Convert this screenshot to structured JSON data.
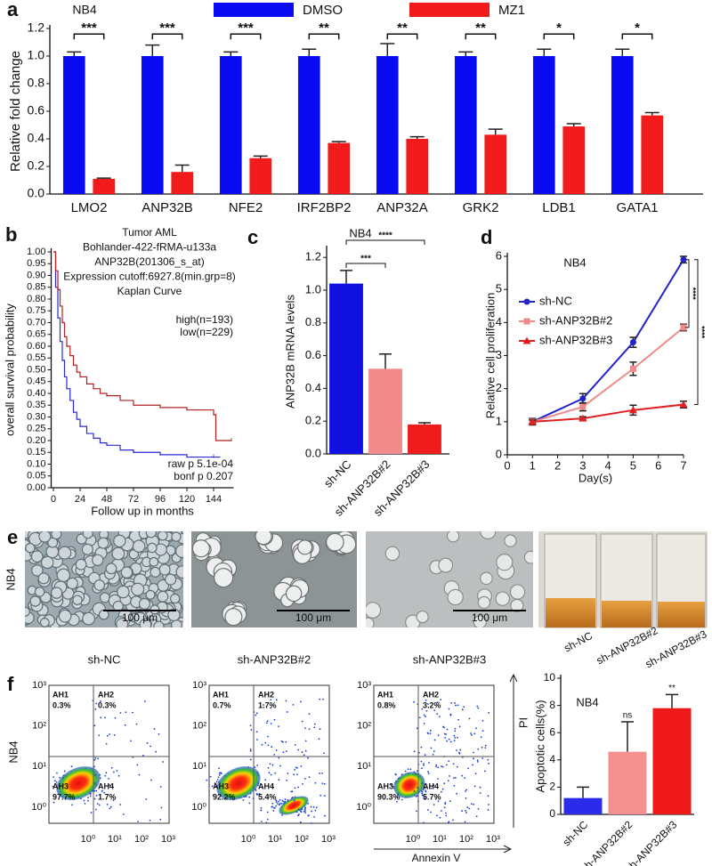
{
  "chart_data": [
    {
      "type": "bar",
      "panel": "a",
      "title": "NB4",
      "ylabel": "Relative fold change",
      "categories": [
        "LMO2",
        "ANP32B",
        "NFE2",
        "IRF2BP2",
        "ANP32A",
        "GRK2",
        "LDB1",
        "GATA1"
      ],
      "series": [
        {
          "name": "DMSO",
          "color": "#0b0bf2",
          "values": [
            1,
            1,
            1,
            1,
            1,
            1,
            1,
            1
          ],
          "errors": [
            0.03,
            0.08,
            0.03,
            0.05,
            0.09,
            0.03,
            0.05,
            0.05
          ]
        },
        {
          "name": "MZ1",
          "color": "#f21a1a",
          "values": [
            0.11,
            0.16,
            0.26,
            0.37,
            0.4,
            0.43,
            0.49,
            0.57
          ],
          "errors": [
            0.005,
            0.05,
            0.015,
            0.01,
            0.015,
            0.04,
            0.02,
            0.02
          ]
        }
      ],
      "significance": [
        "***",
        "***",
        "***",
        "**",
        "**",
        "**",
        "*",
        "*"
      ],
      "ylim": [
        0,
        1.2
      ],
      "yticks": [
        {
          "value": 0,
          "label": "0.0"
        },
        0.2,
        0.4,
        0.6,
        0.8,
        {
          "value": 1,
          "label": "1.0"
        },
        1.2
      ],
      "legend": "top"
    },
    {
      "type": "line",
      "panel": "b",
      "step": true,
      "ylabel": "overall survival probability",
      "xlabel": "Follow up in months",
      "annotations": [
        "Tumor AML",
        "Bohlander-422-fRMA-u133a",
        "ANP32B(201306_s_at)",
        "Expression cutoff:6927.8(min.grp=8)",
        "Kaplan Curve"
      ],
      "stats": [
        "raw p 5.1e-04",
        "bonf p 0.207"
      ],
      "series": [
        {
          "name": "high(n=193)",
          "color": "#2a2ad0",
          "x": [
            0,
            2,
            4,
            6,
            8,
            10,
            12,
            15,
            18,
            21,
            24,
            30,
            36,
            42,
            48,
            60,
            72,
            84,
            96,
            108,
            120,
            132,
            144,
            150
          ],
          "values": [
            1,
            0.85,
            0.72,
            0.62,
            0.54,
            0.47,
            0.42,
            0.37,
            0.32,
            0.29,
            0.26,
            0.23,
            0.21,
            0.19,
            0.18,
            0.16,
            0.15,
            0.15,
            0.14,
            0.14,
            0.13,
            0.13,
            0.13,
            0.13
          ]
        },
        {
          "name": "low(n=229)",
          "color": "#b22222",
          "x": [
            0,
            2,
            4,
            6,
            8,
            10,
            12,
            15,
            18,
            21,
            24,
            30,
            36,
            42,
            48,
            60,
            72,
            84,
            96,
            108,
            120,
            132,
            144,
            146,
            160
          ],
          "values": [
            1,
            0.92,
            0.84,
            0.77,
            0.7,
            0.64,
            0.6,
            0.56,
            0.52,
            0.49,
            0.47,
            0.44,
            0.42,
            0.4,
            0.39,
            0.37,
            0.35,
            0.35,
            0.34,
            0.34,
            0.33,
            0.33,
            0.31,
            0.2,
            0.2
          ]
        }
      ],
      "xlim": [
        -2,
        162
      ],
      "xticks": [
        0,
        24,
        48,
        72,
        96,
        120,
        144
      ],
      "ylim": [
        0,
        1
      ],
      "yticks": [
        {
          "value": 0,
          "label": "0.00"
        },
        0.05,
        {
          "value": 0.1,
          "label": "0.10"
        },
        0.15,
        {
          "value": 0.2,
          "label": "0.20"
        },
        0.25,
        {
          "value": 0.3,
          "label": "0.30"
        },
        0.35,
        {
          "value": 0.4,
          "label": "0.40"
        },
        0.45,
        {
          "value": 0.5,
          "label": "0.50"
        },
        0.55,
        {
          "value": 0.6,
          "label": "0.60"
        },
        0.65,
        {
          "value": 0.7,
          "label": "0.70"
        },
        0.75,
        {
          "value": 0.8,
          "label": "0.80"
        },
        0.85,
        {
          "value": 0.9,
          "label": "0.90"
        },
        0.95,
        {
          "value": 1,
          "label": "1.00"
        }
      ],
      "legend": "right"
    },
    {
      "type": "bar",
      "panel": "c",
      "title": "NB4",
      "ylabel": "ANP32B mRNA levels",
      "categories": [
        "sh-NC",
        "sh-ANP32B#2",
        "sh-ANP32B#3"
      ],
      "values": [
        1.04,
        0.52,
        0.18
      ],
      "errors": [
        0.08,
        0.09,
        0.01
      ],
      "colors": [
        "#1010e0",
        "#f28b8b",
        "#ee1c1c"
      ],
      "significance": [
        "***",
        "****"
      ],
      "ylim": [
        0,
        1.25
      ],
      "yticks": [
        {
          "value": 0,
          "label": "0.0"
        },
        0.2,
        0.4,
        0.6,
        0.8,
        {
          "value": 1,
          "label": "1.0"
        },
        1.2
      ]
    },
    {
      "type": "line",
      "panel": "d",
      "title": "NB4",
      "ylabel": "Relative cell proliferation",
      "xlabel": "Day(s)",
      "x": [
        1,
        3,
        5,
        7
      ],
      "series": [
        {
          "name": "sh-NC",
          "color": "#2323c8",
          "marker": "circle",
          "values": [
            1,
            1.7,
            3.4,
            5.9
          ],
          "errors": [
            0.1,
            0.15,
            0.15,
            0.1
          ]
        },
        {
          "name": "sh-ANP32B#2",
          "color": "#f08a8a",
          "marker": "square",
          "values": [
            1,
            1.45,
            2.6,
            3.85
          ],
          "errors": [
            0.08,
            0.12,
            0.2,
            0.1
          ]
        },
        {
          "name": "sh-ANP32B#3",
          "color": "#e02020",
          "marker": "triangle",
          "values": [
            1,
            1.1,
            1.35,
            1.52
          ],
          "errors": [
            0.05,
            0.05,
            0.15,
            0.1
          ]
        }
      ],
      "significance": [
        "****",
        "****"
      ],
      "xlim": [
        0,
        7
      ],
      "xticks": [
        0,
        1,
        2,
        3,
        4,
        5,
        6,
        7
      ],
      "ylim": [
        0,
        6
      ],
      "yticks": [
        0,
        1,
        2,
        3,
        4,
        5,
        6
      ],
      "legend": "left"
    },
    {
      "type": "bar",
      "panel": null,
      "title": "NB4",
      "ylabel": "Apoptotic cells(%)",
      "categories": [
        "sh-NC",
        "sh-ANP32B#2",
        "sh-ANP32B#3"
      ],
      "values": [
        1.2,
        4.6,
        7.8
      ],
      "errors": [
        0.8,
        2.2,
        1
      ],
      "colors": [
        "#2b2bea",
        "#f59090",
        "#f01818"
      ],
      "significance": [
        null,
        "ns",
        "**"
      ],
      "ylim": [
        0,
        10
      ],
      "yticks": [
        0,
        2,
        4,
        6,
        8,
        10
      ]
    }
  ],
  "images": {
    "panel": "e",
    "row_label": "NB4",
    "micrographs": [
      {
        "label": "sh-NC",
        "scale": "100 μm"
      },
      {
        "label": "sh-ANP32B#2",
        "scale": "100 μm"
      },
      {
        "label": "sh-ANP32B#3",
        "scale": "100 μm"
      }
    ],
    "vials": [
      "sh-NC",
      "sh-ANP32B#2",
      "sh-ANP32B#3"
    ]
  },
  "flow": {
    "panel": "f",
    "row_label": "NB4",
    "y_axis": "PI",
    "x_axis": "Annexin V",
    "ticks": [
      "10⁰",
      "10¹",
      "10²",
      "10³"
    ],
    "plots": [
      {
        "quadrants": [
          {
            "name": "AH1",
            "label": "0.3%"
          },
          {
            "name": "AH2",
            "label": "0.3%"
          },
          {
            "name": "AH3",
            "label": "97.7%"
          },
          {
            "name": "AH4",
            "label": "1.7%"
          }
        ]
      },
      {
        "quadrants": [
          {
            "name": "AH1",
            "label": "0.7%"
          },
          {
            "name": "AH2",
            "label": "1.7%"
          },
          {
            "name": "AH3",
            "label": "92.2%"
          },
          {
            "name": "AH4",
            "label": "5.4%"
          }
        ]
      },
      {
        "quadrants": [
          {
            "name": "AH1",
            "label": "0.8%"
          },
          {
            "name": "AH2",
            "label": "3.2%"
          },
          {
            "name": "AH3",
            "label": "90.3%"
          },
          {
            "name": "AH4",
            "label": "5.7%"
          }
        ]
      }
    ]
  }
}
